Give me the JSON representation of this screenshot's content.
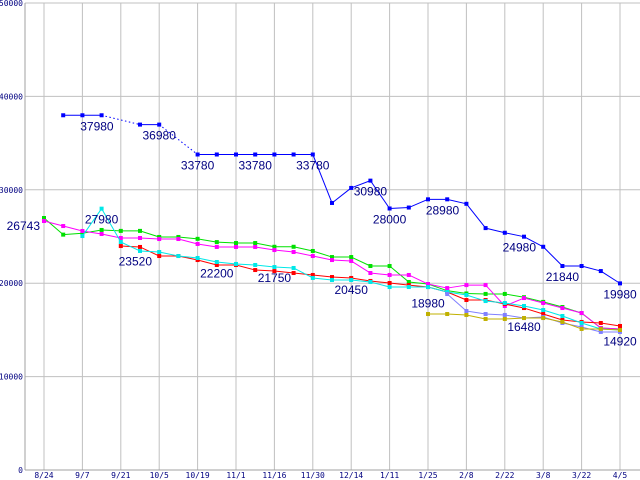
{
  "chart_data": {
    "type": "line",
    "title": "",
    "xlabel": "",
    "ylabel": "",
    "ylim": [
      0,
      50000
    ],
    "yticks": [
      0,
      10000,
      20000,
      30000,
      40000,
      50000
    ],
    "x_count": 31,
    "xtick_labels": [
      "8/24",
      "9/7",
      "9/21",
      "10/5",
      "10/19",
      "11/1",
      "11/16",
      "11/30",
      "12/14",
      "1/11",
      "1/25",
      "2/8",
      "2/22",
      "3/8",
      "3/22",
      "4/5"
    ],
    "grid": true,
    "legend": "none",
    "series": [
      {
        "name": "blue",
        "color": "#0000ff",
        "gap_style": "dotted",
        "values": [
          null,
          37980,
          37980,
          37980,
          null,
          36980,
          36980,
          null,
          33780,
          33780,
          33780,
          33780,
          33780,
          33780,
          33780,
          28590,
          30200,
          30980,
          28000,
          28100,
          28980,
          28980,
          28500,
          25900,
          25400,
          24980,
          23900,
          21840,
          21840,
          21300,
          19980
        ]
      },
      {
        "name": "green",
        "color": "#00e000",
        "values": [
          26980,
          25200,
          25350,
          25700,
          25600,
          25600,
          24950,
          24950,
          24750,
          24400,
          24300,
          24300,
          23900,
          23900,
          23450,
          22800,
          22800,
          21840,
          21840,
          20130,
          19910,
          19200,
          18900,
          18850,
          18850,
          18500,
          18000,
          17450,
          16800,
          15200,
          15100
        ]
      },
      {
        "name": "magenta",
        "color": "#ff00ff",
        "values": [
          26660,
          26120,
          25590,
          25270,
          24840,
          24840,
          24730,
          24730,
          24200,
          23880,
          23880,
          23880,
          23550,
          23340,
          22910,
          22480,
          22380,
          21090,
          20880,
          20880,
          19910,
          19480,
          19800,
          19800,
          17560,
          18410,
          17880,
          17340,
          16810,
          15200,
          15100
        ]
      },
      {
        "name": "red",
        "color": "#ff0000",
        "values": [
          null,
          null,
          null,
          null,
          23980,
          23880,
          22910,
          22910,
          22480,
          21950,
          21950,
          21410,
          21300,
          21090,
          20880,
          20660,
          20560,
          20240,
          20020,
          19800,
          19590,
          19060,
          18200,
          18200,
          17770,
          17340,
          16700,
          16060,
          15850,
          15740,
          15420
        ]
      },
      {
        "name": "cyan",
        "color": "#00e8e8",
        "values": [
          null,
          null,
          25050,
          27980,
          24410,
          23450,
          23340,
          22910,
          22700,
          22270,
          22060,
          21950,
          21730,
          21630,
          20560,
          20340,
          20340,
          20130,
          19590,
          19590,
          19590,
          19060,
          18740,
          18090,
          17880,
          17560,
          17130,
          16490,
          15740,
          15100,
          14990
        ]
      },
      {
        "name": "lavender",
        "color": "#8080ff",
        "values": [
          null,
          null,
          null,
          null,
          null,
          null,
          null,
          null,
          null,
          null,
          null,
          null,
          null,
          null,
          null,
          null,
          null,
          null,
          null,
          null,
          null,
          18840,
          17020,
          16700,
          16600,
          16270,
          16380,
          15740,
          15310,
          14780,
          14780
        ]
      },
      {
        "name": "olive",
        "color": "#c0b000",
        "values": [
          null,
          null,
          null,
          null,
          null,
          null,
          null,
          null,
          null,
          null,
          null,
          null,
          null,
          null,
          null,
          null,
          null,
          null,
          null,
          null,
          16700,
          16700,
          16600,
          16170,
          16170,
          16270,
          16270,
          15850,
          15100,
          15100,
          14990
        ]
      }
    ],
    "annotations": [
      {
        "text": "37980",
        "t": 3,
        "value": 37980,
        "place": "below-left"
      },
      {
        "text": "36980",
        "t": 6,
        "value": 36980,
        "place": "below"
      },
      {
        "text": "33780",
        "t": 8,
        "value": 33780,
        "place": "below"
      },
      {
        "text": "33780",
        "t": 11,
        "value": 33780,
        "place": "below"
      },
      {
        "text": "33780",
        "t": 14,
        "value": 33780,
        "place": "below"
      },
      {
        "text": "30980",
        "t": 17,
        "value": 30980,
        "place": "below"
      },
      {
        "text": "28000",
        "t": 18,
        "value": 28000,
        "place": "below"
      },
      {
        "text": "28980",
        "t": 21,
        "value": 28980,
        "place": "below-left"
      },
      {
        "text": "24980",
        "t": 25,
        "value": 24980,
        "place": "below-left"
      },
      {
        "text": "21840",
        "t": 27,
        "value": 21840,
        "place": "below"
      },
      {
        "text": "19980",
        "t": 30,
        "value": 19980,
        "place": "below"
      },
      {
        "text": "26743",
        "t": 0,
        "value": 26743,
        "place": "left"
      },
      {
        "text": "27980",
        "t": 3,
        "value": 27980,
        "place": "below"
      },
      {
        "text": "23520",
        "t": 5,
        "value": 23520,
        "place": "below-left"
      },
      {
        "text": "22200",
        "t": 9,
        "value": 22200,
        "place": "below"
      },
      {
        "text": "21750",
        "t": 12,
        "value": 21750,
        "place": "below"
      },
      {
        "text": "20450",
        "t": 16,
        "value": 20450,
        "place": "below"
      },
      {
        "text": "18980",
        "t": 20,
        "value": 18980,
        "place": "below"
      },
      {
        "text": "16480",
        "t": 25,
        "value": 16480,
        "place": "below"
      },
      {
        "text": "14920",
        "t": 30,
        "value": 14920,
        "place": "below"
      }
    ]
  }
}
